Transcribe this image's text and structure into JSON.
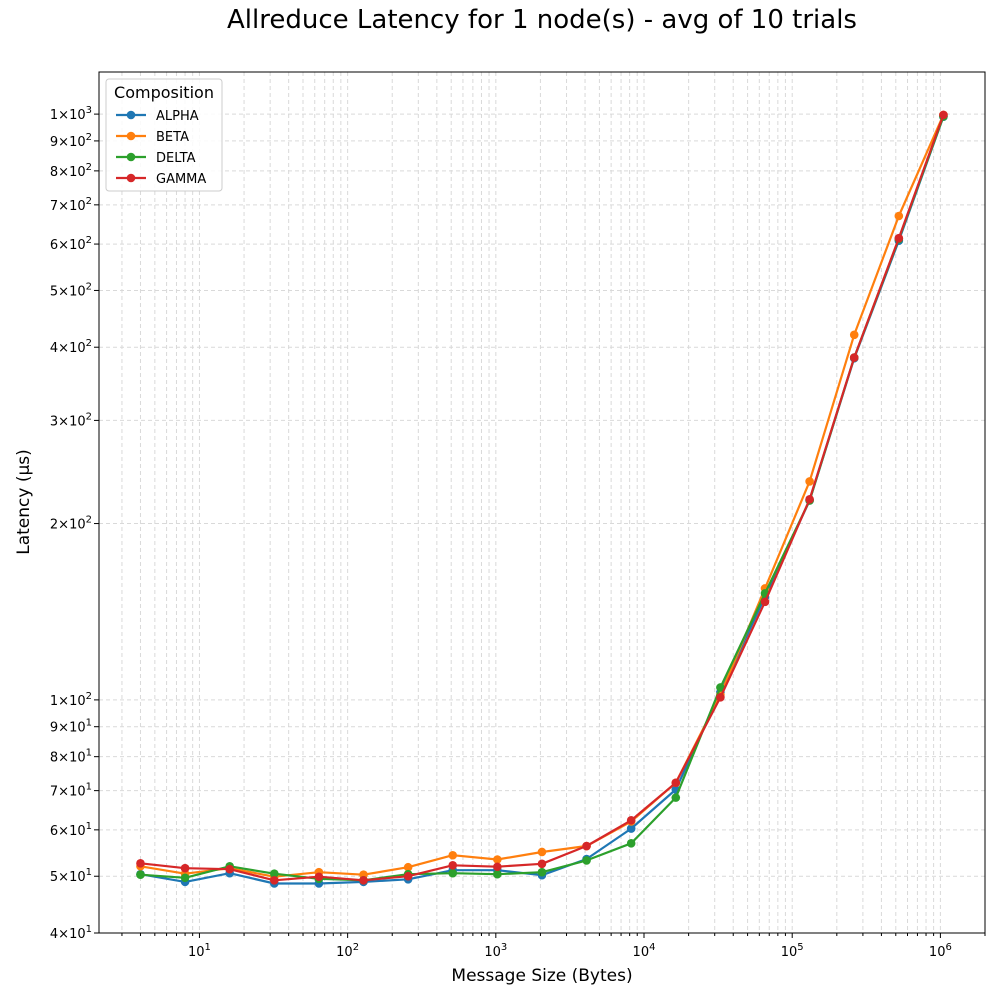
{
  "chart_data": {
    "type": "line",
    "title": "Allreduce Latency for 1 node(s) - avg of 10 trials",
    "xlabel": "Message Size (Bytes)",
    "ylabel": "Latency (µs)",
    "x_scale": "log",
    "y_scale": "log",
    "xlim": [
      2.1,
      2000000
    ],
    "ylim": [
      40,
      1180
    ],
    "grid": true,
    "legend": {
      "title": "Composition",
      "placement": "top-left"
    },
    "x_ticks": [
      {
        "value": 10,
        "base": "10",
        "exp": "1"
      },
      {
        "value": 100,
        "base": "10",
        "exp": "2"
      },
      {
        "value": 1000,
        "base": "10",
        "exp": "3"
      },
      {
        "value": 10000,
        "base": "10",
        "exp": "4"
      },
      {
        "value": 100000,
        "base": "10",
        "exp": "5"
      },
      {
        "value": 1000000,
        "base": "10",
        "exp": "6"
      }
    ],
    "y_ticks": [
      {
        "value": 40,
        "mant": "4",
        "base": "10",
        "exp": "1"
      },
      {
        "value": 50,
        "mant": "5",
        "base": "10",
        "exp": "1"
      },
      {
        "value": 60,
        "mant": "6",
        "base": "10",
        "exp": "1"
      },
      {
        "value": 70,
        "mant": "7",
        "base": "10",
        "exp": "1"
      },
      {
        "value": 80,
        "mant": "8",
        "base": "10",
        "exp": "1"
      },
      {
        "value": 90,
        "mant": "9",
        "base": "10",
        "exp": "1"
      },
      {
        "value": 100,
        "mant": "1",
        "base": "10",
        "exp": "2"
      },
      {
        "value": 200,
        "mant": "2",
        "base": "10",
        "exp": "2"
      },
      {
        "value": 300,
        "mant": "3",
        "base": "10",
        "exp": "2"
      },
      {
        "value": 400,
        "mant": "4",
        "base": "10",
        "exp": "2"
      },
      {
        "value": 500,
        "mant": "5",
        "base": "10",
        "exp": "2"
      },
      {
        "value": 600,
        "mant": "6",
        "base": "10",
        "exp": "2"
      },
      {
        "value": 700,
        "mant": "7",
        "base": "10",
        "exp": "2"
      },
      {
        "value": 800,
        "mant": "8",
        "base": "10",
        "exp": "2"
      },
      {
        "value": 900,
        "mant": "9",
        "base": "10",
        "exp": "2"
      },
      {
        "value": 1000,
        "mant": "1",
        "base": "10",
        "exp": "3"
      }
    ],
    "x": [
      4,
      8,
      16,
      32,
      64,
      128,
      256,
      512,
      1024,
      2048,
      4096,
      8192,
      16384,
      32768,
      65536,
      131072,
      262144,
      524288,
      1048576
    ],
    "series": [
      {
        "name": "ALPHA",
        "color": "#1f77b4",
        "values": [
          50.4,
          48.9,
          50.6,
          48.6,
          48.6,
          48.9,
          49.4,
          51.2,
          51.2,
          50.2,
          53.5,
          60.3,
          70.3,
          103,
          150,
          219,
          383,
          608,
          990
        ]
      },
      {
        "name": "BETA",
        "color": "#ff7f0e",
        "values": [
          52.0,
          50.5,
          51.6,
          49.9,
          50.8,
          50.3,
          51.8,
          54.3,
          53.4,
          55.0,
          56.3,
          62.0,
          72.2,
          102,
          155,
          236,
          420,
          670,
          997
        ]
      },
      {
        "name": "DELTA",
        "color": "#2ca02c",
        "values": [
          50.3,
          49.7,
          52.0,
          50.5,
          49.5,
          49.2,
          50.4,
          50.6,
          50.4,
          50.8,
          53.2,
          56.9,
          68.1,
          105,
          152,
          219,
          384,
          612,
          991
        ]
      },
      {
        "name": "GAMMA",
        "color": "#d62728",
        "values": [
          52.6,
          51.6,
          51.4,
          49.2,
          49.9,
          49.2,
          50.0,
          52.2,
          51.9,
          52.5,
          56.3,
          62.3,
          72.2,
          101,
          147,
          220,
          384,
          614,
          997
        ]
      }
    ]
  }
}
